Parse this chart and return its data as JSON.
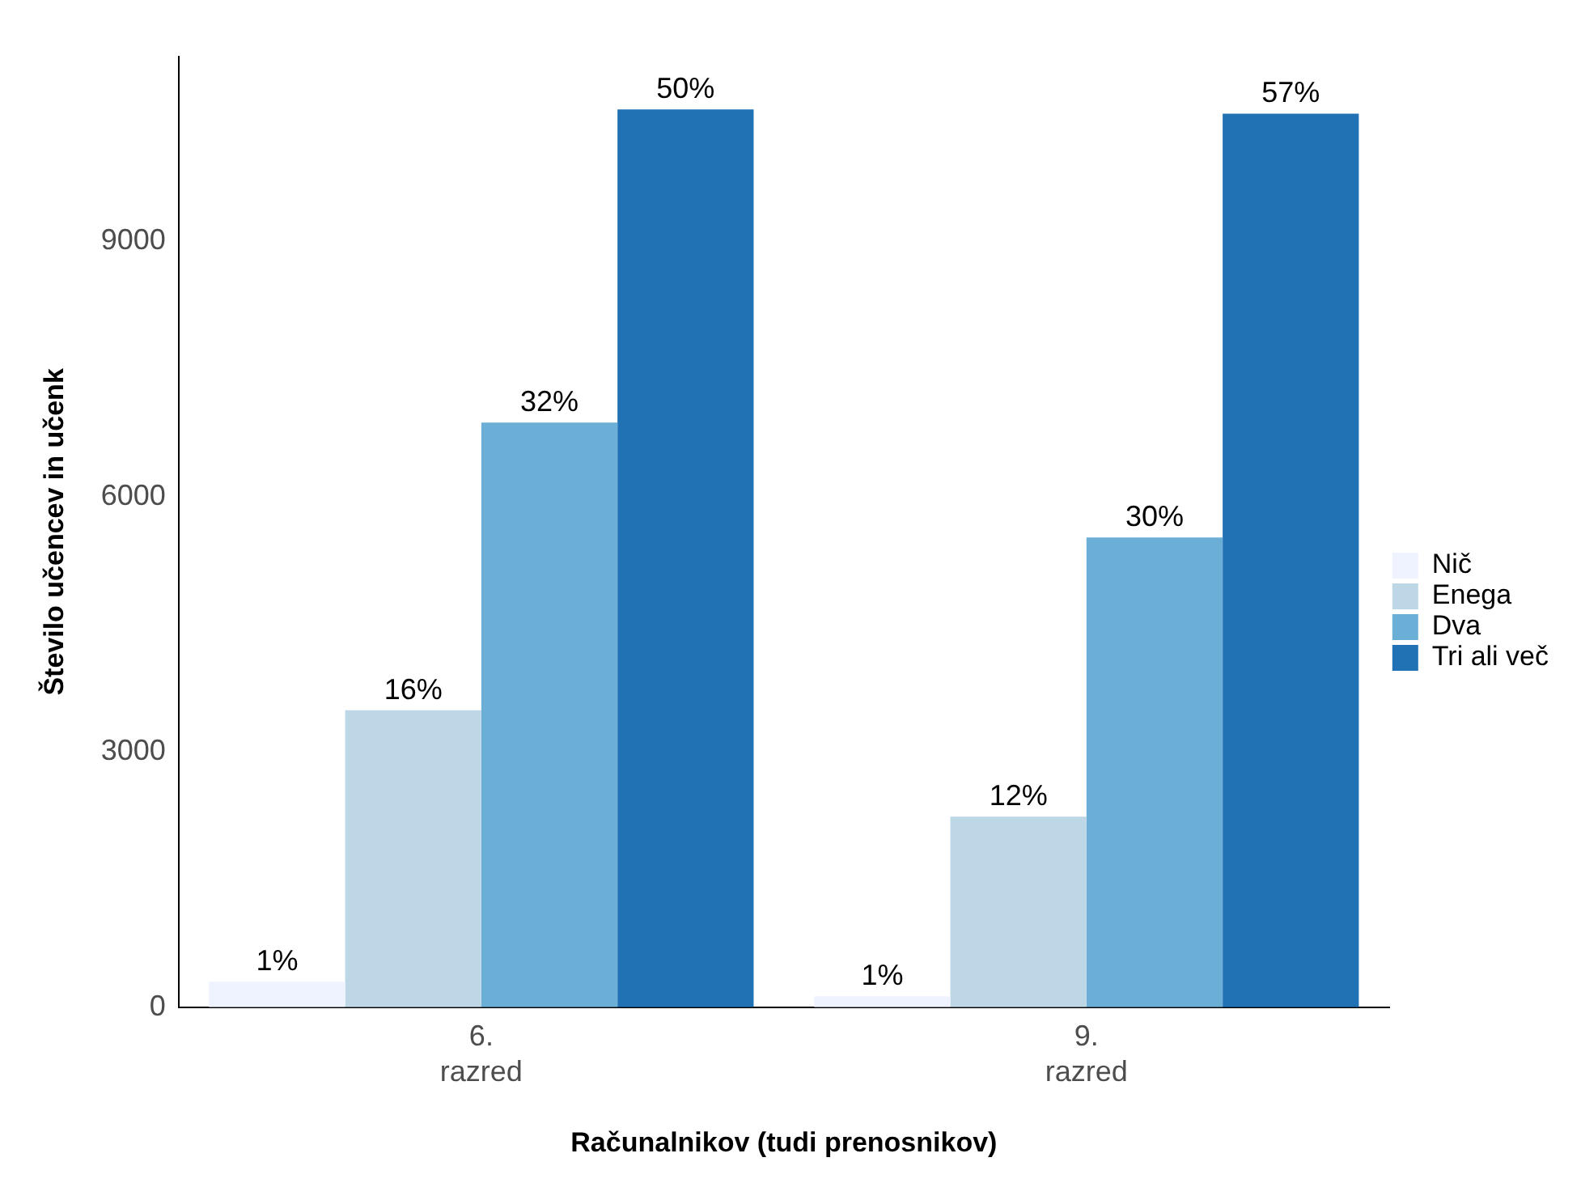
{
  "chart_data": {
    "type": "bar",
    "xlabel": "Računalnikov (tudi prenosnikov)",
    "ylabel": "Število učencev in učenk",
    "categories": [
      "6.\nrazred",
      "9.\nrazred"
    ],
    "series": [
      {
        "name": "Nič",
        "color": "#eff3ff",
        "values": [
          300,
          130
        ]
      },
      {
        "name": "Enega",
        "color": "#bdd7e7",
        "values": [
          3490,
          2240
        ]
      },
      {
        "name": "Dva",
        "color": "#6baed6",
        "values": [
          6870,
          5520
        ]
      },
      {
        "name": "Tri ali več",
        "color": "#2171b5",
        "values": [
          10550,
          10500
        ]
      }
    ],
    "annotations": [
      "1%",
      "16%",
      "32%",
      "50%",
      "1%",
      "12%",
      "30%",
      "57%"
    ],
    "ylim": [
      0,
      11170
    ],
    "yticks": [
      0,
      3000,
      6000,
      9000
    ],
    "grid": false,
    "legend": "right"
  }
}
